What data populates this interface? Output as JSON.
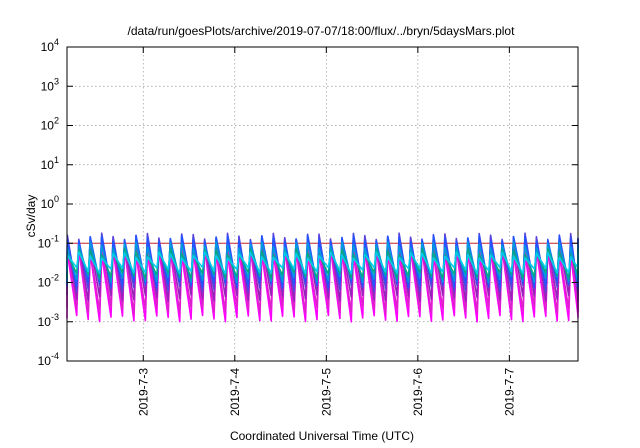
{
  "chart_data": {
    "type": "line",
    "title": "/data/run/goesPlots/archive/2019-07-07/18:00/flux/../bryn/5daysMars.plot",
    "xlabel": "Coordinated Universal Time (UTC)",
    "ylabel": "cSv/day",
    "yscale": "log",
    "ylim": [
      0.0001,
      10000
    ],
    "y_ticks": [
      {
        "base": "10",
        "exp": "4"
      },
      {
        "base": "10",
        "exp": "3"
      },
      {
        "base": "10",
        "exp": "2"
      },
      {
        "base": "10",
        "exp": "1"
      },
      {
        "base": "10",
        "exp": "0"
      },
      {
        "base": "10",
        "exp": "-1"
      },
      {
        "base": "10",
        "exp": "-2"
      },
      {
        "base": "10",
        "exp": "-3"
      },
      {
        "base": "10",
        "exp": "-4"
      }
    ],
    "xlim": [
      "2019-07-02T04:00",
      "2019-07-07T18:00"
    ],
    "x_ticks": [
      "2019-7-3",
      "2019-7-4",
      "2019-7-5",
      "2019-7-6",
      "2019-7-7"
    ],
    "grid": true,
    "legend": "none",
    "reference_line": {
      "y": 0.1,
      "color": "#cc2a2a"
    },
    "oscillation_period_hours": 3.0,
    "series": [
      {
        "color": "#ff00ff",
        "peak": 0.06,
        "trough": 0.0012
      },
      {
        "color": "#dd22cc",
        "peak": 0.08,
        "trough": 0.002
      },
      {
        "color": "#9922bb",
        "peak": 0.12,
        "trough": 0.004
      },
      {
        "color": "#5544dd",
        "peak": 0.15,
        "trough": 0.007
      },
      {
        "color": "#2255ff",
        "peak": 0.13,
        "trough": 0.009
      },
      {
        "color": "#0099dd",
        "peak": 0.09,
        "trough": 0.012
      },
      {
        "color": "#00aa88",
        "peak": 0.06,
        "trough": 0.015
      },
      {
        "color": "#00ccee",
        "peak": 0.05,
        "trough": 0.02
      }
    ]
  }
}
